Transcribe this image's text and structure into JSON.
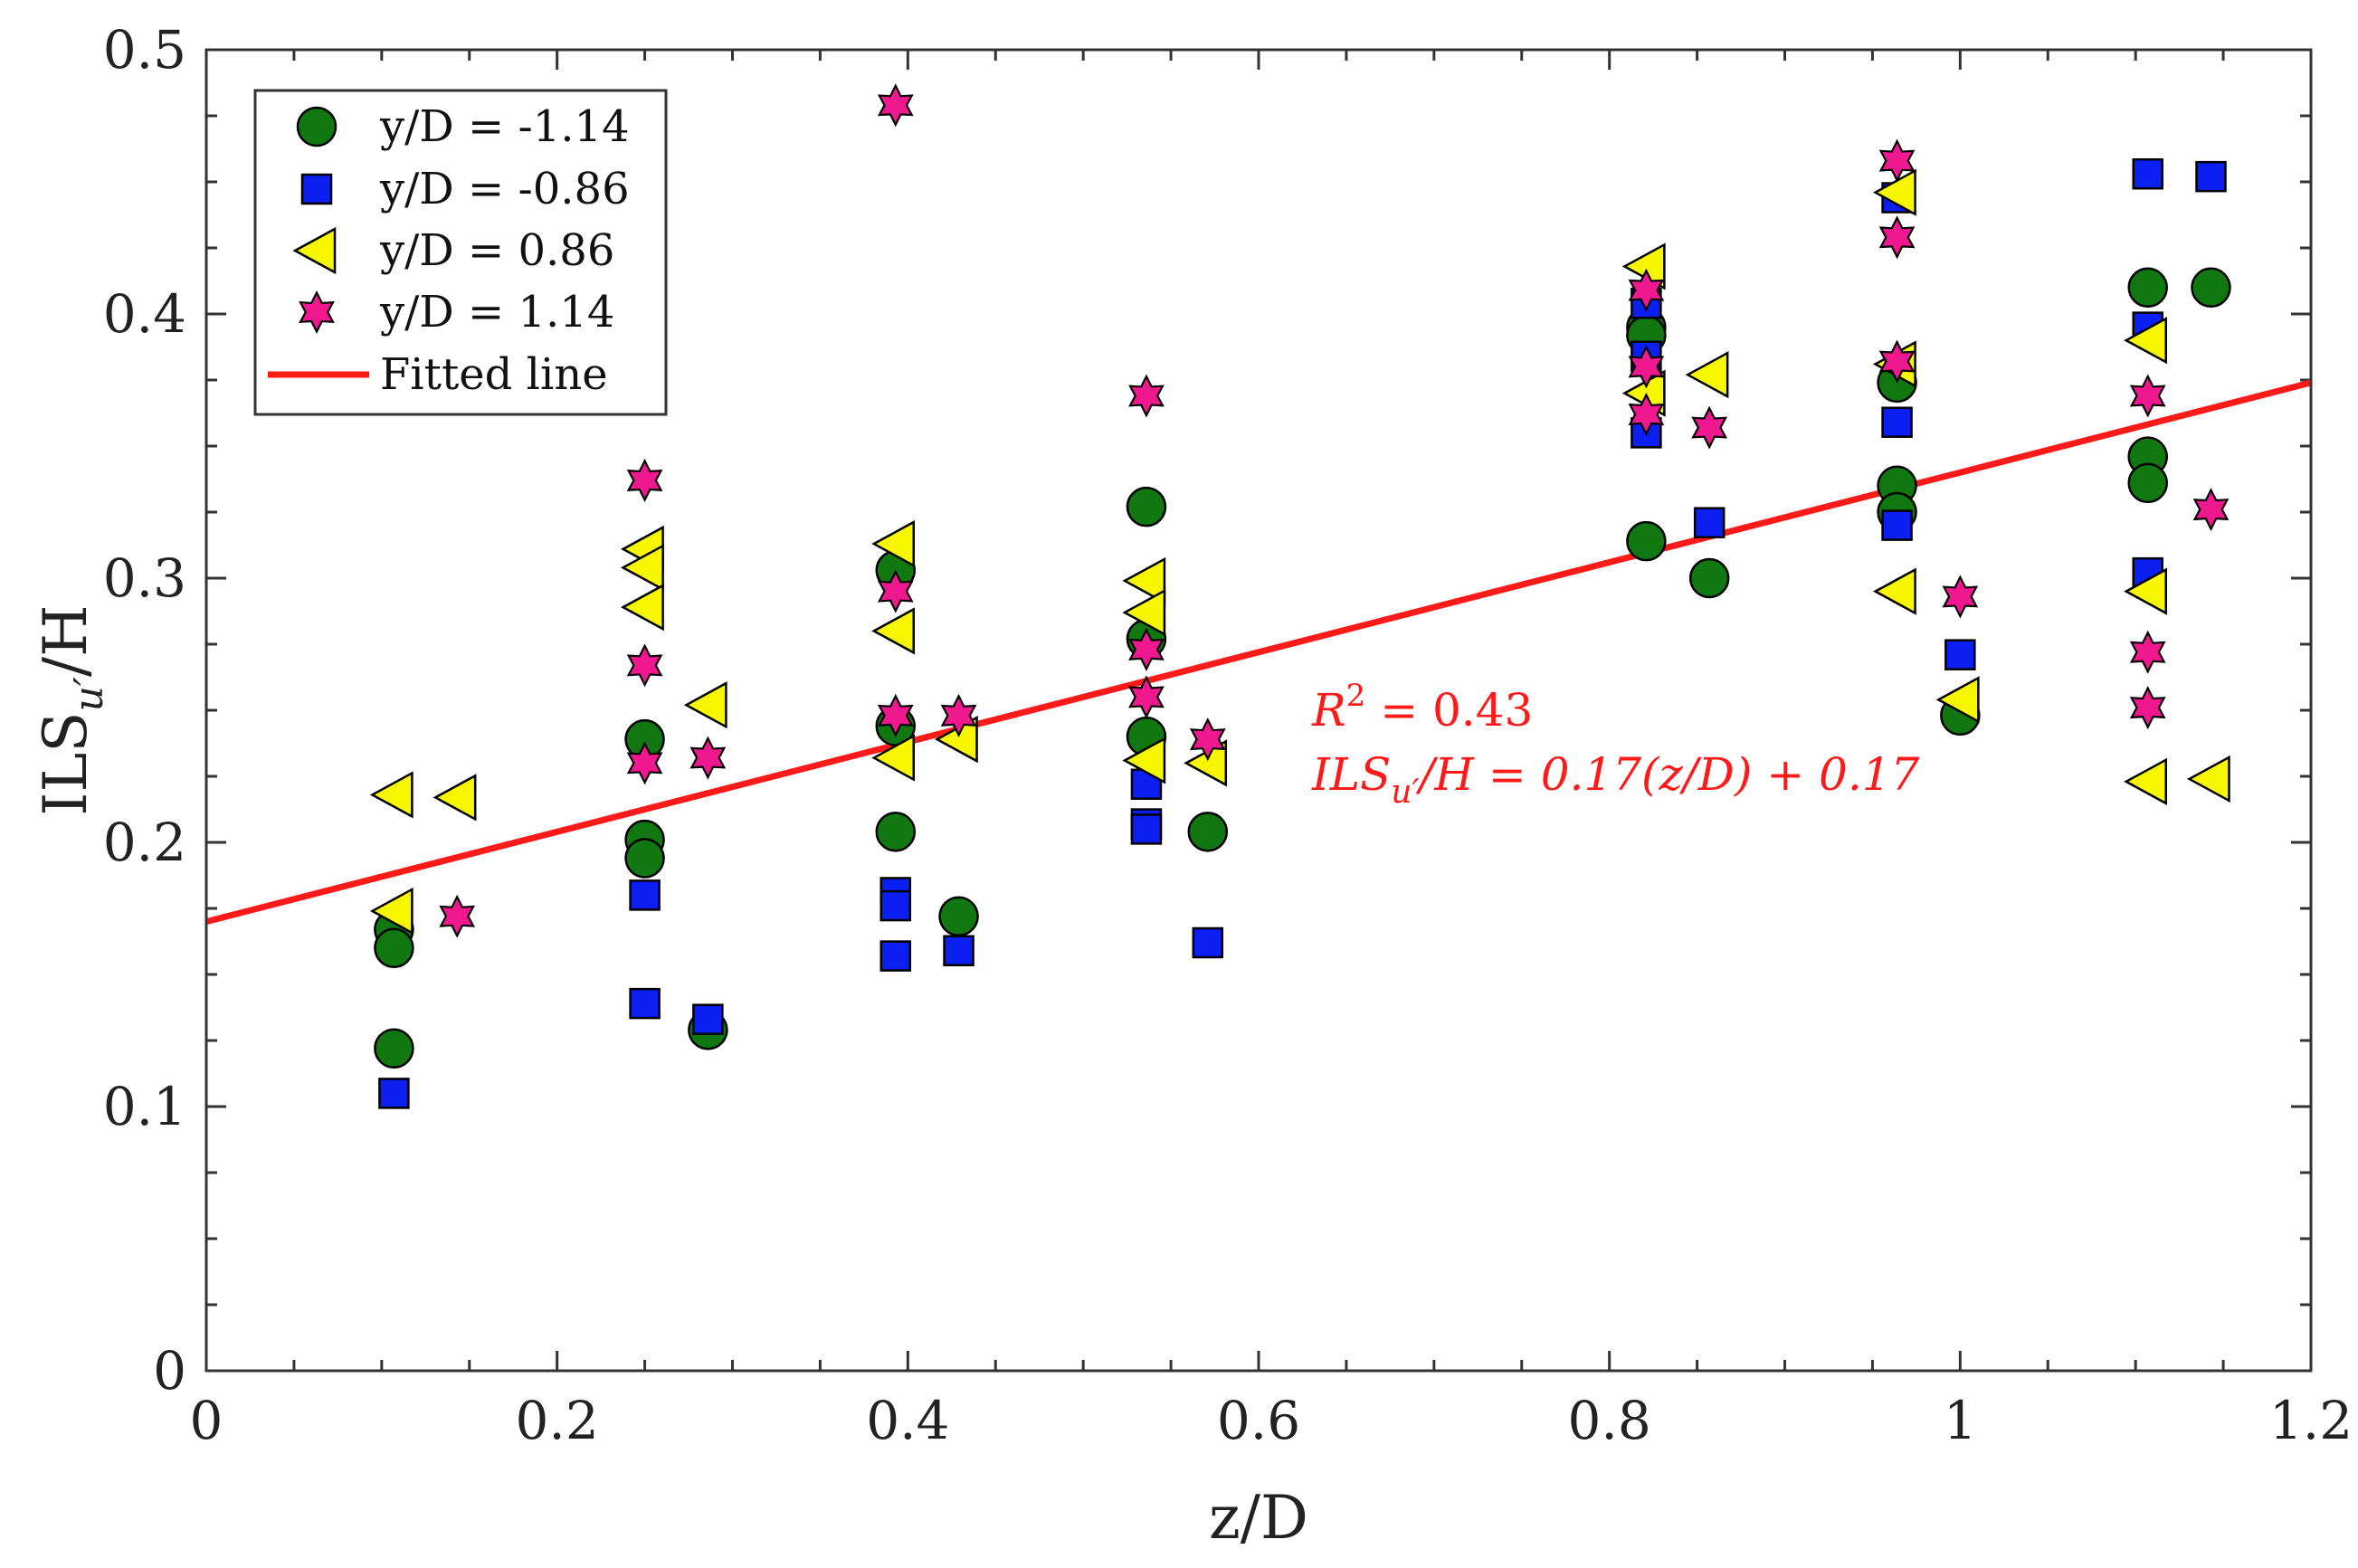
{
  "chart_data": {
    "type": "scatter",
    "title": "",
    "xlabel": "z/D",
    "ylabel": "ILS",
    "ylabel_sub": "u′",
    "ylabel_tail": "/H",
    "xlim": [
      0,
      1.2
    ],
    "ylim": [
      0,
      0.5
    ],
    "x_ticks": [
      0,
      0.2,
      0.4,
      0.6,
      0.8,
      1,
      1.2
    ],
    "x_tick_labels": [
      "0",
      "0.2",
      "0.4",
      "0.6",
      "0.8",
      "1",
      "1.2"
    ],
    "y_ticks": [
      0,
      0.1,
      0.2,
      0.3,
      0.4,
      0.5
    ],
    "y_tick_labels": [
      "0",
      "0.1",
      "0.2",
      "0.3",
      "0.4",
      "0.5"
    ],
    "legend_position": "top-left",
    "series": [
      {
        "name": "y/D = -1.14",
        "marker": "circle",
        "color": "#117711",
        "points": [
          [
            0.107,
            0.167
          ],
          [
            0.107,
            0.16
          ],
          [
            0.107,
            0.122
          ],
          [
            0.25,
            0.239
          ],
          [
            0.25,
            0.201
          ],
          [
            0.25,
            0.194
          ],
          [
            0.286,
            0.129
          ],
          [
            0.393,
            0.303
          ],
          [
            0.393,
            0.244
          ],
          [
            0.393,
            0.204
          ],
          [
            0.429,
            0.172
          ],
          [
            0.536,
            0.327
          ],
          [
            0.536,
            0.277
          ],
          [
            0.536,
            0.24
          ],
          [
            0.571,
            0.204
          ],
          [
            0.821,
            0.395
          ],
          [
            0.821,
            0.392
          ],
          [
            0.821,
            0.314
          ],
          [
            0.857,
            0.3
          ],
          [
            0.964,
            0.374
          ],
          [
            0.964,
            0.335
          ],
          [
            0.964,
            0.325
          ],
          [
            1.0,
            0.248
          ],
          [
            1.107,
            0.41
          ],
          [
            1.107,
            0.346
          ],
          [
            1.107,
            0.336
          ],
          [
            1.143,
            0.41
          ]
        ]
      },
      {
        "name": "y/D = -0.86",
        "marker": "square",
        "color": "#0b1ff0",
        "points": [
          [
            0.107,
            0.105
          ],
          [
            0.25,
            0.18
          ],
          [
            0.25,
            0.139
          ],
          [
            0.286,
            0.133
          ],
          [
            0.393,
            0.181
          ],
          [
            0.393,
            0.176
          ],
          [
            0.393,
            0.157
          ],
          [
            0.429,
            0.159
          ],
          [
            0.536,
            0.222
          ],
          [
            0.536,
            0.207
          ],
          [
            0.536,
            0.205
          ],
          [
            0.571,
            0.162
          ],
          [
            0.821,
            0.404
          ],
          [
            0.821,
            0.384
          ],
          [
            0.821,
            0.355
          ],
          [
            0.857,
            0.321
          ],
          [
            0.964,
            0.444
          ],
          [
            0.964,
            0.359
          ],
          [
            0.964,
            0.32
          ],
          [
            1.0,
            0.271
          ],
          [
            1.107,
            0.453
          ],
          [
            1.107,
            0.395
          ],
          [
            1.107,
            0.302
          ],
          [
            1.143,
            0.452
          ]
        ]
      },
      {
        "name": "y/D = 0.86",
        "marker": "triangle-left",
        "color": "#f7f700",
        "points": [
          [
            0.107,
            0.218
          ],
          [
            0.107,
            0.174
          ],
          [
            0.143,
            0.217
          ],
          [
            0.25,
            0.311
          ],
          [
            0.25,
            0.304
          ],
          [
            0.25,
            0.289
          ],
          [
            0.286,
            0.252
          ],
          [
            0.393,
            0.313
          ],
          [
            0.393,
            0.28
          ],
          [
            0.393,
            0.232
          ],
          [
            0.429,
            0.239
          ],
          [
            0.536,
            0.299
          ],
          [
            0.536,
            0.287
          ],
          [
            0.536,
            0.231
          ],
          [
            0.571,
            0.23
          ],
          [
            0.821,
            0.418
          ],
          [
            0.821,
            0.37
          ],
          [
            0.857,
            0.377
          ],
          [
            0.964,
            0.446
          ],
          [
            0.964,
            0.381
          ],
          [
            0.964,
            0.295
          ],
          [
            1.0,
            0.254
          ],
          [
            1.107,
            0.39
          ],
          [
            1.107,
            0.295
          ],
          [
            1.107,
            0.223
          ],
          [
            1.143,
            0.224
          ]
        ]
      },
      {
        "name": "y/D = 1.14",
        "marker": "star",
        "color": "#f0188f",
        "points": [
          [
            0.143,
            0.172
          ],
          [
            0.25,
            0.337
          ],
          [
            0.25,
            0.267
          ],
          [
            0.25,
            0.23
          ],
          [
            0.286,
            0.232
          ],
          [
            0.393,
            0.479
          ],
          [
            0.393,
            0.295
          ],
          [
            0.393,
            0.248
          ],
          [
            0.429,
            0.248
          ],
          [
            0.536,
            0.369
          ],
          [
            0.536,
            0.273
          ],
          [
            0.536,
            0.255
          ],
          [
            0.571,
            0.239
          ],
          [
            0.821,
            0.409
          ],
          [
            0.821,
            0.38
          ],
          [
            0.821,
            0.362
          ],
          [
            0.857,
            0.357
          ],
          [
            0.964,
            0.458
          ],
          [
            0.964,
            0.429
          ],
          [
            0.964,
            0.382
          ],
          [
            1.0,
            0.293
          ],
          [
            1.107,
            0.369
          ],
          [
            1.107,
            0.272
          ],
          [
            1.107,
            0.251
          ],
          [
            1.143,
            0.326
          ]
        ]
      }
    ],
    "fit_line": {
      "name": "Fitted line",
      "color": "#ff1a1a",
      "slope": 0.17,
      "intercept": 0.17,
      "x_range": [
        0,
        1.2
      ]
    },
    "annotation": {
      "r2_text": "R",
      "r2_sup": "2",
      "r2_rest": " = 0.43",
      "eq_prefix": "ILS",
      "eq_sub": "u′",
      "eq_mid": "/H",
      "eq_rest": " = 0.17(z/D) + 0.17"
    }
  }
}
